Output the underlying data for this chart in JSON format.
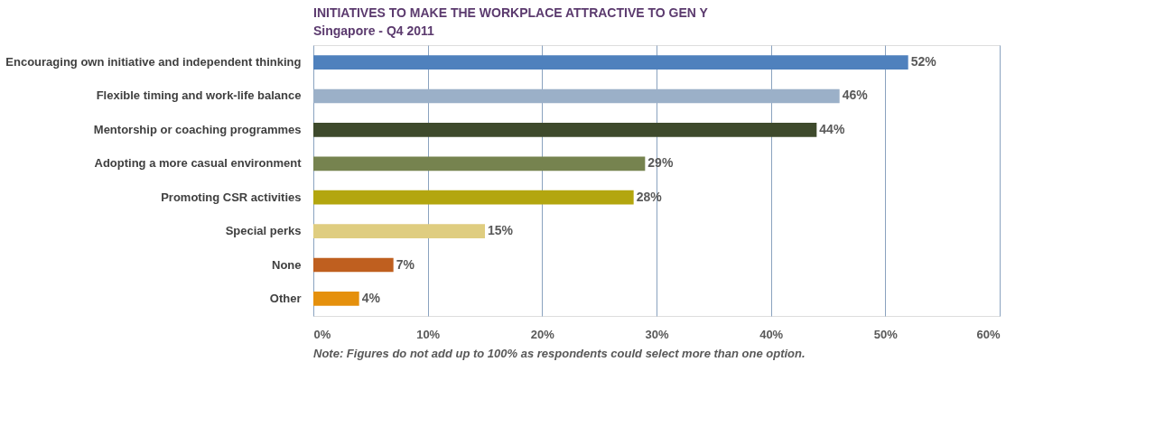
{
  "chart_data": {
    "type": "bar",
    "orientation": "horizontal",
    "title": "INITIATIVES TO MAKE THE WORKPLACE ATTRACTIVE TO GEN Y",
    "subtitle": "Singapore - Q4 2011",
    "categories": [
      "Encouraging own initiative and independent thinking",
      "Flexible timing and work-life balance",
      "Mentorship or coaching programmes",
      "Adopting a more casual environment",
      "Promoting CSR activities",
      "Special perks",
      "None",
      "Other"
    ],
    "values": [
      52,
      46,
      44,
      29,
      28,
      15,
      7,
      4
    ],
    "colors": [
      "#4f81bd",
      "#9bb0c8",
      "#3e4a2c",
      "#76834f",
      "#b3a60f",
      "#dfcd80",
      "#bf5f1f",
      "#e5900c"
    ],
    "value_labels": [
      "52%",
      "46%",
      "44%",
      "29%",
      "28%",
      "15%",
      "7%",
      "4%"
    ],
    "xlim": [
      0,
      60
    ],
    "xticks": [
      {
        "value": 0,
        "label": "0%"
      },
      {
        "value": 10,
        "label": "10%"
      },
      {
        "value": 20,
        "label": "20%"
      },
      {
        "value": 30,
        "label": "30%"
      },
      {
        "value": 40,
        "label": "40%"
      },
      {
        "value": 50,
        "label": "50%"
      },
      {
        "value": 60,
        "label": "60%"
      }
    ],
    "grid": "x",
    "annotations": [
      "Note: Figures do not add up to 100% as respondents could select more than one option."
    ]
  }
}
